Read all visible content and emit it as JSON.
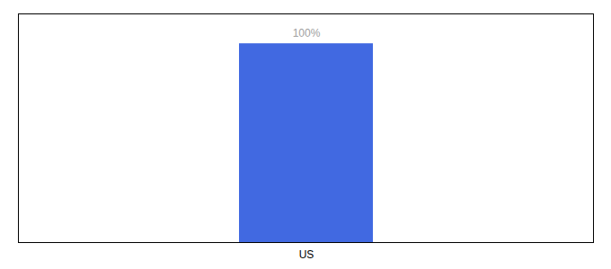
{
  "chart_data": {
    "type": "bar",
    "categories": [
      "US"
    ],
    "values": [
      100
    ],
    "value_labels": [
      "100%"
    ],
    "data_labels": true,
    "color": "#4169e1",
    "ylim": [
      0,
      115
    ],
    "tick_labels": "x",
    "grid": false
  }
}
